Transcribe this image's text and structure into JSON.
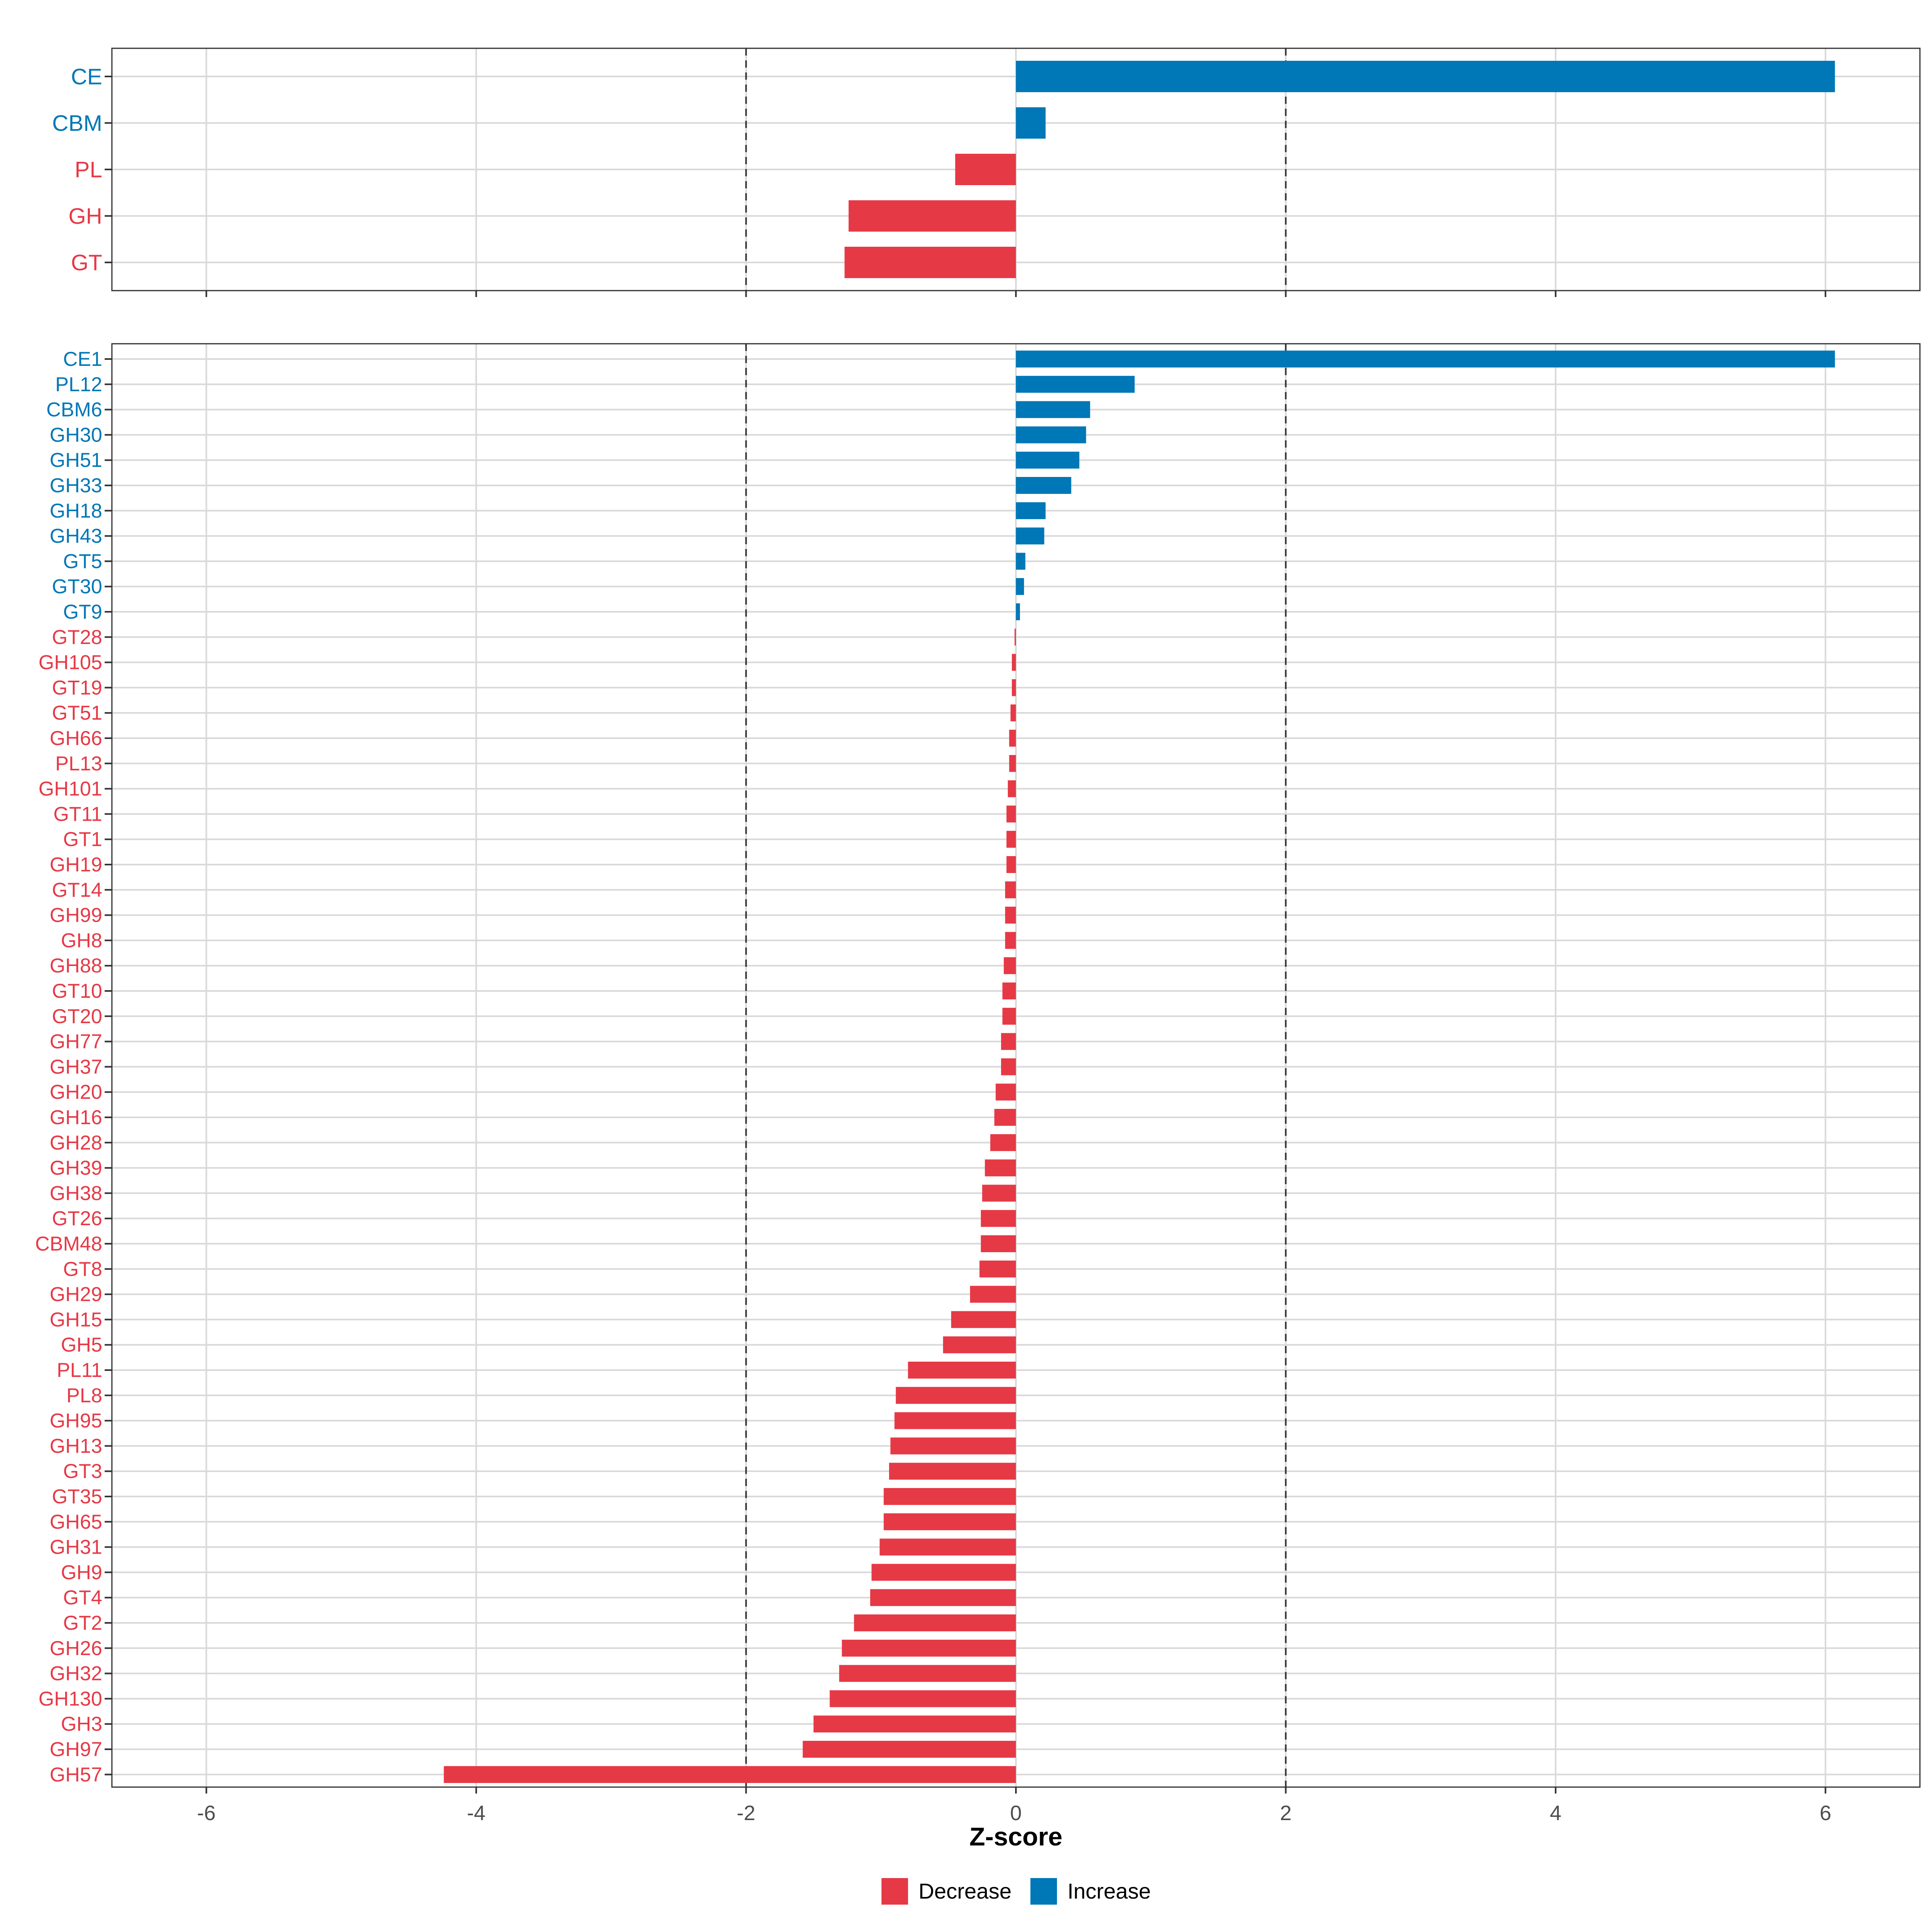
{
  "chart_data": {
    "type": "bar",
    "orientation": "horizontal",
    "xlabel": "Z-score",
    "xlim": [
      -6.7,
      6.7
    ],
    "x_ticks": [
      -6,
      -4,
      -2,
      0,
      2,
      4,
      6
    ],
    "x_tick_labels": [
      "-6",
      "-4",
      "-2",
      "0",
      "2",
      "4",
      "6"
    ],
    "reference_lines": [
      -2,
      2
    ],
    "colors": {
      "Decrease": "#E63946",
      "Increase": "#0077B6"
    },
    "legend": [
      {
        "key": "Decrease",
        "label": "Decrease"
      },
      {
        "key": "Increase",
        "label": "Increase"
      }
    ],
    "legend_position": "bottom",
    "panels": [
      {
        "name": "family",
        "categories": [
          "CE",
          "CBM",
          "PL",
          "GH",
          "GT"
        ],
        "values": [
          6.07,
          0.22,
          -0.45,
          -1.24,
          -1.27
        ]
      },
      {
        "name": "subfamily",
        "categories": [
          "CE1",
          "PL12",
          "CBM6",
          "GH30",
          "GH51",
          "GH33",
          "GH18",
          "GH43",
          "GT5",
          "GT30",
          "GT9",
          "GT28",
          "GH105",
          "GT19",
          "GT51",
          "GH66",
          "PL13",
          "GH101",
          "GT11",
          "GT1",
          "GH19",
          "GT14",
          "GH99",
          "GH8",
          "GH88",
          "GT10",
          "GT20",
          "GH77",
          "GH37",
          "GH20",
          "GH16",
          "GH28",
          "GH39",
          "GH38",
          "GT26",
          "CBM48",
          "GT8",
          "GH29",
          "GH15",
          "GH5",
          "PL11",
          "PL8",
          "GH95",
          "GH13",
          "GT3",
          "GT35",
          "GH65",
          "GH31",
          "GH9",
          "GT4",
          "GT2",
          "GH26",
          "GH32",
          "GH130",
          "GH3",
          "GH97",
          "GH57"
        ],
        "values": [
          6.07,
          0.88,
          0.55,
          0.52,
          0.47,
          0.41,
          0.22,
          0.21,
          0.07,
          0.06,
          0.03,
          -0.01,
          -0.03,
          -0.03,
          -0.04,
          -0.05,
          -0.05,
          -0.06,
          -0.07,
          -0.07,
          -0.07,
          -0.08,
          -0.08,
          -0.08,
          -0.09,
          -0.1,
          -0.1,
          -0.11,
          -0.11,
          -0.15,
          -0.16,
          -0.19,
          -0.23,
          -0.25,
          -0.26,
          -0.26,
          -0.27,
          -0.34,
          -0.48,
          -0.54,
          -0.8,
          -0.89,
          -0.9,
          -0.93,
          -0.94,
          -0.98,
          -0.98,
          -1.01,
          -1.07,
          -1.08,
          -1.2,
          -1.29,
          -1.31,
          -1.38,
          -1.5,
          -1.58,
          -4.24
        ]
      }
    ]
  }
}
